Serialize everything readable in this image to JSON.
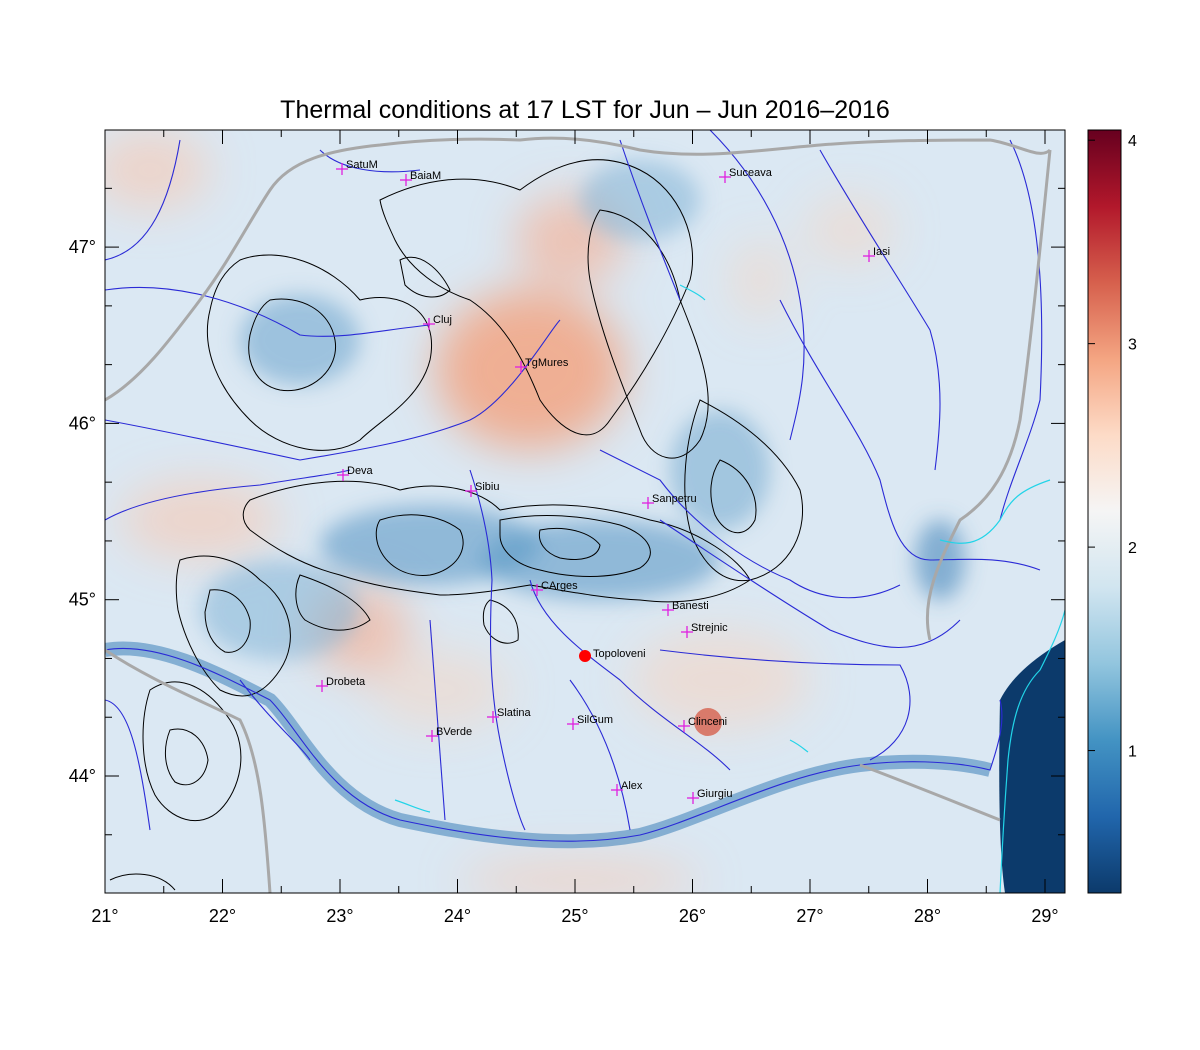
{
  "title": "Thermal conditions at 17 LST for Jun – Jun  2016–2016",
  "lon_ticks": [
    "21°",
    "22°",
    "23°",
    "24°",
    "25°",
    "26°",
    "27°",
    "28°",
    "29°"
  ],
  "lat_ticks": [
    "44°",
    "45°",
    "46°",
    "47°"
  ],
  "colorbar": {
    "labels": [
      "1",
      "2",
      "3",
      "4"
    ],
    "colors": [
      "#0c3a6b",
      "#2166ac",
      "#4393c3",
      "#92c5de",
      "#d1e5f0",
      "#f5f5f5",
      "#fddbc7",
      "#f4a582",
      "#d6604d",
      "#b2182b",
      "#67001f"
    ]
  },
  "marker": {
    "name": "Topoloveni",
    "color": "#ff0000"
  },
  "stations": [
    {
      "name": "SatuM"
    },
    {
      "name": "BaiaM"
    },
    {
      "name": "Suceava"
    },
    {
      "name": "Iasi"
    },
    {
      "name": "Cluj"
    },
    {
      "name": "TgMures"
    },
    {
      "name": "Deva"
    },
    {
      "name": "Sibiu"
    },
    {
      "name": "Sanpetru"
    },
    {
      "name": "CArges"
    },
    {
      "name": "Banesti"
    },
    {
      "name": "Strejnic"
    },
    {
      "name": "Drobeta"
    },
    {
      "name": "Slatina"
    },
    {
      "name": "SilGum"
    },
    {
      "name": "Clinceni"
    },
    {
      "name": "BVerde"
    },
    {
      "name": "Alex"
    },
    {
      "name": "Giurgiu"
    }
  ],
  "colors": {
    "station": "#e020e0",
    "rivers": "#2a2ad6",
    "coast": "#22d4e8",
    "border": "#a8a8a8",
    "contour": "#000000"
  }
}
